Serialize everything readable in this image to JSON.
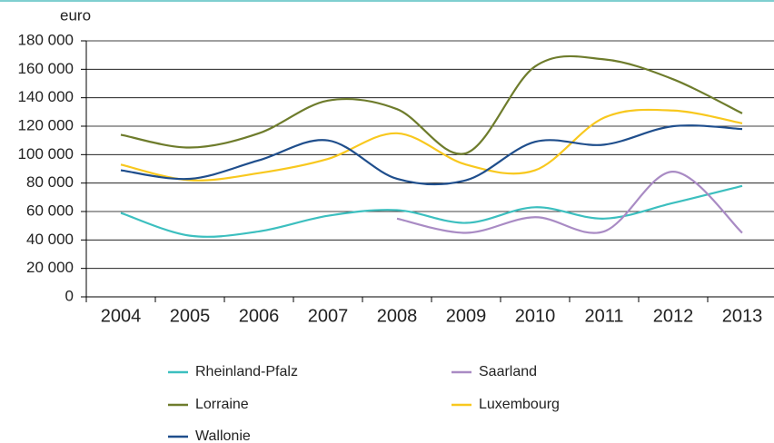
{
  "chart_data": {
    "type": "line",
    "y_label": "euro",
    "categories": [
      "2004",
      "2005",
      "2006",
      "2007",
      "2008",
      "2009",
      "2010",
      "2011",
      "2012",
      "2013"
    ],
    "series": [
      {
        "name": "Rheinland-Pfalz",
        "color": "#3cbfbf",
        "values": [
          59000,
          43000,
          46000,
          57000,
          61000,
          52000,
          63000,
          55000,
          66000,
          78000
        ]
      },
      {
        "name": "Saarland",
        "color": "#a98bc4",
        "values": [
          null,
          null,
          null,
          null,
          55000,
          45000,
          56000,
          46000,
          88000,
          45000
        ]
      },
      {
        "name": "Lorraine",
        "color": "#6e7c2c",
        "values": [
          114000,
          105000,
          115000,
          138000,
          132000,
          101000,
          162000,
          167000,
          153000,
          129000
        ]
      },
      {
        "name": "Luxembourg",
        "color": "#f8c81e",
        "values": [
          93000,
          82000,
          87000,
          97000,
          115000,
          93000,
          89000,
          126000,
          131000,
          122000
        ]
      },
      {
        "name": "Wallonie",
        "color": "#1f4e8c",
        "values": [
          89000,
          83000,
          96000,
          110000,
          83000,
          82000,
          109000,
          107000,
          120000,
          118000
        ]
      }
    ],
    "ylim": [
      0,
      180000
    ],
    "yticks": [
      {
        "value": 0,
        "label": "0"
      },
      {
        "value": 20000,
        "label": "20 000"
      },
      {
        "value": 40000,
        "label": "40 000"
      },
      {
        "value": 60000,
        "label": "60 000"
      },
      {
        "value": 80000,
        "label": "80 000"
      },
      {
        "value": 100000,
        "label": "100 000"
      },
      {
        "value": 120000,
        "label": "120 000"
      },
      {
        "value": 140000,
        "label": "140 000"
      },
      {
        "value": 160000,
        "label": "160 000"
      },
      {
        "value": 180000,
        "label": "180 000"
      }
    ],
    "grid": true
  }
}
